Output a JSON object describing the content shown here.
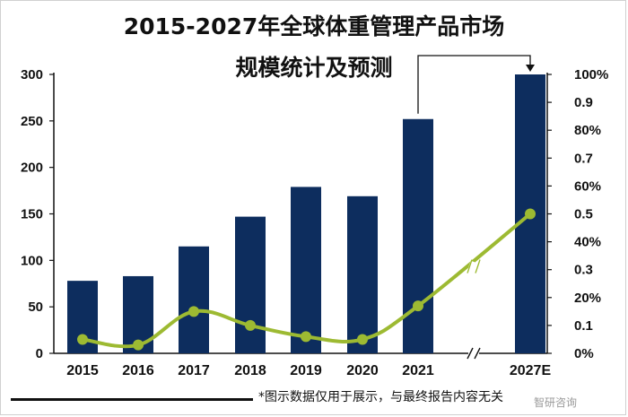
{
  "chart_data": {
    "type": "bar",
    "title_line1": "2015-2027年全球体重管理产品市场",
    "title_line2": "规模统计及预测",
    "categories": [
      "2015",
      "2016",
      "2017",
      "2018",
      "2019",
      "2020",
      "2021",
      "2027E"
    ],
    "series": [
      {
        "type": "bar",
        "axis": "left",
        "color": "#0d2d5e",
        "values": [
          78,
          83,
          115,
          147,
          179,
          169,
          252,
          300
        ]
      },
      {
        "type": "line",
        "axis": "right",
        "color": "#9dba32",
        "values": [
          0.05,
          0.03,
          0.15,
          0.1,
          0.06,
          0.05,
          0.17,
          0.5
        ]
      }
    ],
    "y_left": {
      "min": 0,
      "max": 300,
      "ticks": [
        "0",
        "50",
        "100",
        "150",
        "200",
        "250",
        "300"
      ]
    },
    "y_right": {
      "min": 0,
      "max": 1,
      "ticks": [
        "0%",
        "0.1",
        "20%",
        "0.3",
        "40%",
        "0.5",
        "60%",
        "0.7",
        "80%",
        "0.9",
        "100%"
      ]
    },
    "axis_break": true
  },
  "footnote": "*图示数据仅用于展示，与最终报告内容无关",
  "watermark": "智研咨询"
}
